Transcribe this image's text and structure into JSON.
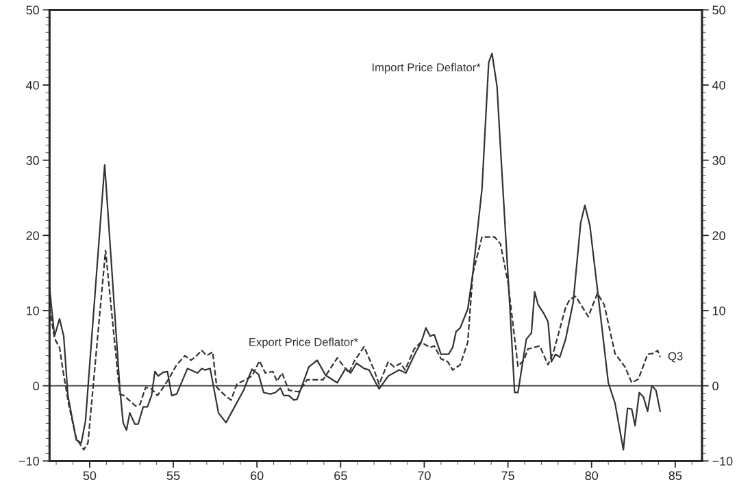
{
  "chart_data": {
    "type": "line",
    "xlim": [
      47.6,
      86.6
    ],
    "xticks": [
      50,
      55,
      60,
      65,
      70,
      75,
      80,
      85
    ],
    "ylim": [
      -10,
      50
    ],
    "yticks": [
      -10,
      0,
      10,
      20,
      30,
      40,
      50
    ],
    "y2lim": [
      -10,
      50
    ],
    "y2ticks": [
      -10,
      0,
      10,
      20,
      30,
      40,
      50
    ],
    "grid": false,
    "legend": false,
    "marker": "none",
    "ref_lines": [
      {
        "axis": "y",
        "value": 0,
        "color": "#333333",
        "line_style": "solid"
      }
    ],
    "annotations": [
      {
        "text": "Q3",
        "x": 84.1,
        "y": 3.8
      }
    ],
    "series": [
      {
        "name": "Import Price Deflator*",
        "color": "#333333",
        "line_style": "solid",
        "x": [
          47.6,
          47.9,
          48.2,
          48.45,
          48.7,
          49.2,
          49.5,
          49.75,
          50.9,
          51.8,
          52.0,
          52.2,
          52.4,
          52.7,
          52.9,
          53.2,
          53.45,
          53.7,
          53.9,
          54.1,
          54.4,
          54.65,
          54.9,
          55.2,
          55.85,
          56.45,
          56.7,
          56.9,
          57.2,
          57.7,
          58.15,
          59.2,
          59.7,
          60.1,
          60.4,
          60.8,
          61.1,
          61.4,
          61.6,
          61.9,
          62.2,
          62.4,
          63.1,
          63.6,
          64.1,
          64.8,
          65.3,
          65.6,
          65.95,
          66.4,
          66.7,
          67.15,
          67.3,
          67.85,
          68.5,
          68.9,
          69.5,
          69.8,
          70.1,
          70.35,
          70.6,
          71.0,
          71.45,
          71.7,
          71.9,
          72.15,
          72.6,
          72.9,
          73.45,
          73.85,
          74.05,
          74.35,
          74.55,
          75.1,
          75.4,
          75.6,
          76.1,
          76.4,
          76.6,
          76.8,
          77.15,
          77.4,
          77.6,
          77.85,
          78.1,
          78.45,
          78.9,
          79.35,
          79.6,
          79.9,
          80.6,
          81.0,
          81.4,
          81.9,
          82.15,
          82.4,
          82.6,
          82.85,
          83.1,
          83.35,
          83.6,
          83.85,
          84.1
        ],
        "values": [
          13.1,
          6.6,
          8.9,
          6.6,
          -1.3,
          -7.2,
          -7.6,
          -4.7,
          29.4,
          -0.2,
          -4.9,
          -5.9,
          -3.6,
          -5.1,
          -5.1,
          -2.8,
          -2.8,
          -1.3,
          1.9,
          1.3,
          1.8,
          1.9,
          -1.3,
          -1.1,
          2.3,
          1.7,
          2.3,
          2.1,
          2.3,
          -3.6,
          -4.9,
          -0.6,
          2.2,
          1.5,
          -0.9,
          -1.1,
          -0.9,
          -0.3,
          -1.3,
          -1.3,
          -1.9,
          -1.8,
          2.5,
          3.4,
          1.4,
          0.4,
          2.3,
          1.7,
          3.0,
          2.3,
          2.1,
          0.2,
          -0.4,
          1.3,
          2.1,
          1.7,
          4.5,
          5.7,
          7.7,
          6.6,
          6.8,
          4.2,
          4.2,
          5.1,
          7.2,
          7.7,
          10.2,
          14.9,
          26.2,
          43.0,
          44.2,
          39.8,
          31.9,
          11.1,
          -0.9,
          -0.9,
          6.2,
          7.0,
          12.5,
          10.8,
          9.6,
          8.5,
          3.2,
          4.2,
          3.8,
          6.2,
          11.1,
          21.7,
          24.0,
          21.3,
          8.1,
          0.4,
          -2.3,
          -8.5,
          -3.0,
          -3.1,
          -5.3,
          -0.9,
          -1.5,
          -3.4,
          0,
          -0.6,
          -3.4
        ]
      },
      {
        "name": "Export Price Deflator*",
        "color": "#333333",
        "line_style": "dashed",
        "x": [
          47.6,
          47.9,
          48.2,
          48.4,
          48.75,
          49.2,
          49.65,
          49.9,
          50.95,
          51.8,
          52.05,
          52.75,
          53.0,
          53.35,
          53.7,
          54.05,
          54.4,
          54.75,
          55.2,
          55.7,
          56.05,
          56.3,
          56.7,
          57.0,
          57.35,
          57.6,
          58.1,
          58.45,
          58.8,
          59.3,
          59.7,
          60.15,
          60.5,
          60.95,
          61.2,
          61.5,
          61.9,
          62.5,
          63.0,
          63.95,
          64.8,
          65.5,
          65.8,
          66.4,
          67.0,
          67.3,
          67.85,
          68.2,
          68.6,
          68.85,
          69.4,
          69.8,
          70.35,
          70.6,
          71.0,
          71.4,
          71.7,
          72.15,
          72.6,
          72.9,
          73.45,
          74.2,
          74.55,
          75.0,
          75.6,
          75.95,
          76.2,
          76.9,
          77.4,
          77.75,
          78.45,
          78.7,
          79.05,
          79.8,
          80.35,
          80.75,
          81.4,
          82.0,
          82.4,
          82.8,
          83.35,
          83.7,
          83.95,
          84.1
        ],
        "values": [
          10.4,
          6.3,
          5.1,
          2.1,
          -2.5,
          -7.0,
          -8.5,
          -7.6,
          18.0,
          -1.1,
          -1.3,
          -2.7,
          -2.5,
          -0.2,
          -0.4,
          -1.3,
          -0.2,
          1.0,
          2.8,
          4.0,
          3.4,
          3.8,
          4.7,
          4.0,
          4.5,
          -0.2,
          -1.3,
          -1.9,
          0.2,
          0.8,
          1.3,
          3.3,
          1.7,
          1.9,
          0.6,
          1.7,
          -0.6,
          -0.8,
          0.8,
          0.8,
          3.7,
          1.7,
          3.2,
          5.2,
          2.1,
          0.2,
          3.2,
          2.5,
          3.0,
          2.1,
          4.9,
          5.8,
          5.1,
          5.3,
          3.6,
          3.2,
          2.1,
          2.8,
          5.8,
          14.9,
          19.8,
          19.8,
          18.9,
          13.8,
          2.6,
          3.4,
          4.9,
          5.3,
          2.8,
          4.7,
          10.4,
          11.5,
          11.9,
          9.2,
          12.3,
          10.8,
          4.3,
          2.5,
          0.4,
          0.9,
          4.2,
          4.3,
          4.7,
          3.8
        ]
      }
    ]
  }
}
